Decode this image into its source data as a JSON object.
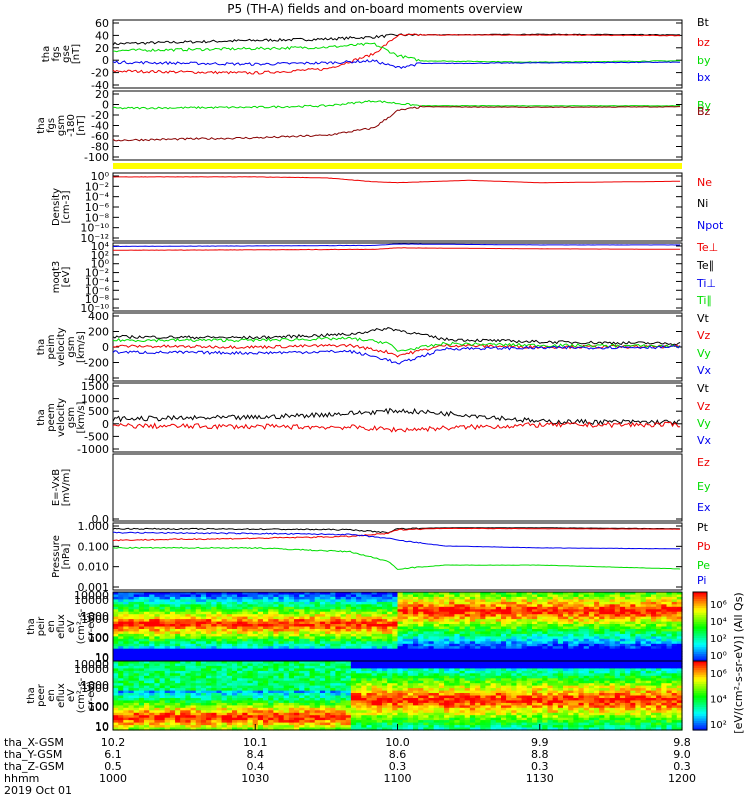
{
  "title": "P5 (TH-A) fields and on-board moments overview",
  "colors": {
    "black": "#000000",
    "red": "#ee0000",
    "green": "#00dd00",
    "blue": "#0000ee",
    "darkred": "#880000",
    "yellow": "#ffff00"
  },
  "chart_data": [
    {
      "type": "line",
      "panel": "fgs",
      "ylabel": [
        "tha",
        "fgs",
        "gse",
        "[nT]"
      ],
      "ylim": [
        -40,
        60
      ],
      "ticks": [
        "60",
        "40",
        "20",
        "0",
        "-20",
        "-40"
      ],
      "legend": [
        {
          "name": "Bt",
          "color": "black"
        },
        {
          "name": "bz",
          "color": "red"
        },
        {
          "name": "by",
          "color": "green"
        },
        {
          "name": "bx",
          "color": "blue"
        }
      ],
      "x_hhmm": [
        1000,
        1030,
        1045,
        1055,
        1100,
        1105,
        1130,
        1200
      ],
      "series": [
        {
          "name": "Bt",
          "values": [
            25,
            30,
            32,
            35,
            38,
            38,
            39,
            38
          ]
        },
        {
          "name": "bz",
          "values": [
            -15,
            -18,
            -12,
            10,
            37,
            38,
            38,
            37
          ]
        },
        {
          "name": "by",
          "values": [
            15,
            18,
            20,
            25,
            8,
            0,
            -2,
            0
          ]
        },
        {
          "name": "bx",
          "values": [
            -2,
            -5,
            -3,
            0,
            -10,
            -4,
            -3,
            -2
          ]
        }
      ]
    },
    {
      "type": "line",
      "panel": "fgs_gsm",
      "ylabel": [
        "tha",
        "fgs",
        "gsm",
        "-180",
        "[nT]"
      ],
      "ylim": [
        -110,
        30
      ],
      "ticks": [
        "20",
        "0",
        "-20",
        "-40",
        "-60",
        "-80",
        "-100"
      ],
      "legend": [
        {
          "name": "By",
          "color": "green"
        },
        {
          "name": "Bz",
          "color": "darkred"
        }
      ],
      "x_hhmm": [
        1000,
        1030,
        1045,
        1055,
        1100,
        1105,
        1130,
        1200
      ],
      "series": [
        {
          "name": "By",
          "values": [
            -5,
            -3,
            0,
            10,
            5,
            0,
            0,
            0
          ]
        },
        {
          "name": "Bz",
          "values": [
            -70,
            -65,
            -60,
            -45,
            -10,
            -2,
            -3,
            -2
          ]
        }
      ]
    },
    {
      "type": "line",
      "panel": "density",
      "ylabel": [
        "Density",
        "[cm-3]"
      ],
      "ticks": [
        "10⁰",
        "10⁻²",
        "10⁻⁴",
        "10⁻⁶",
        "10⁻⁸",
        "10⁻¹⁰",
        "10⁻¹²"
      ],
      "legend": [
        {
          "name": "Ne",
          "color": "red"
        },
        {
          "name": "Ni",
          "color": "black"
        },
        {
          "name": "Npot",
          "color": "blue"
        }
      ],
      "scale": "log",
      "ylim_exp": [
        -12,
        2
      ],
      "x_hhmm": [
        1000,
        1030,
        1045,
        1055,
        1100,
        1115,
        1130,
        1200
      ],
      "series": [
        {
          "name": "Ne",
          "log_values": [
            1.2,
            1.2,
            1.0,
            0.2,
            0.0,
            0.5,
            0.0,
            0.3
          ]
        }
      ]
    },
    {
      "type": "line",
      "panel": "moqt3",
      "ylabel": [
        "moqt3",
        "[eV]"
      ],
      "ticks": [
        "10⁴",
        "10²",
        "10⁰",
        "10⁻²",
        "10⁻⁴",
        "10⁻⁶",
        "10⁻⁸",
        "10⁻¹⁰"
      ],
      "legend": [
        {
          "name": "Te⊥",
          "color": "red"
        },
        {
          "name": "Te∥",
          "color": "black"
        },
        {
          "name": "Ti⊥",
          "color": "blue"
        },
        {
          "name": "Ti∥",
          "color": "green"
        }
      ],
      "scale": "log",
      "ylim_exp": [
        -10,
        4
      ],
      "x_hhmm": [
        1000,
        1030,
        1055,
        1100,
        1130,
        1200
      ],
      "series": [
        {
          "name": "Ti",
          "log_values": [
            3.3,
            3.4,
            3.5,
            3.8,
            3.6,
            3.6
          ]
        },
        {
          "name": "Te",
          "log_values": [
            2.5,
            2.6,
            2.7,
            3.0,
            2.8,
            2.7
          ]
        }
      ]
    },
    {
      "type": "line",
      "panel": "peim_velocity",
      "ylabel": [
        "tha",
        "peim",
        "velocity",
        "gsm",
        "[km/s]"
      ],
      "ylim": [
        -400,
        400
      ],
      "ticks": [
        "400",
        "200",
        "0",
        "-200",
        "-400"
      ],
      "legend": [
        {
          "name": "Vt",
          "color": "black"
        },
        {
          "name": "Vz",
          "color": "red"
        },
        {
          "name": "Vy",
          "color": "green"
        },
        {
          "name": "Vx",
          "color": "blue"
        }
      ],
      "x_hhmm": [
        1000,
        1030,
        1050,
        1058,
        1100,
        1110,
        1130,
        1200
      ],
      "series": [
        {
          "name": "Vt",
          "values": [
            120,
            110,
            150,
            220,
            200,
            90,
            60,
            40
          ]
        },
        {
          "name": "Vz",
          "values": [
            10,
            0,
            20,
            -60,
            -100,
            20,
            0,
            5
          ]
        },
        {
          "name": "Vy",
          "values": [
            80,
            80,
            100,
            50,
            -50,
            40,
            20,
            10
          ]
        },
        {
          "name": "Vx",
          "values": [
            -60,
            -70,
            -50,
            -150,
            -200,
            -20,
            -10,
            0
          ]
        }
      ]
    },
    {
      "type": "line",
      "panel": "peem_velocity",
      "ylabel": [
        "tha",
        "peem",
        "velocity",
        "gsm",
        "[km/s]"
      ],
      "ylim": [
        -1000,
        1500
      ],
      "ticks": [
        "1500",
        "1000",
        "500",
        "0",
        "-500",
        "-1000"
      ],
      "legend": [
        {
          "name": "Vt",
          "color": "black"
        },
        {
          "name": "Vz",
          "color": "red"
        },
        {
          "name": "Vy",
          "color": "green"
        },
        {
          "name": "Vx",
          "color": "blue"
        }
      ],
      "x_hhmm": [
        1000,
        1030,
        1050,
        1100,
        1115,
        1130,
        1200
      ],
      "series": [
        {
          "name": "Vt",
          "values": [
            200,
            250,
            400,
            500,
            350,
            100,
            80
          ]
        },
        {
          "name": "Vz",
          "values": [
            -50,
            -80,
            -100,
            -200,
            -100,
            -20,
            -10
          ]
        }
      ]
    },
    {
      "type": "line",
      "panel": "efield",
      "ylabel": [
        "E=-VxB",
        "[mV/m]"
      ],
      "ticks": [
        "0.0"
      ],
      "legend": [
        {
          "name": "Ez",
          "color": "red"
        },
        {
          "name": "Ey",
          "color": "green"
        },
        {
          "name": "Ex",
          "color": "blue"
        }
      ],
      "series": []
    },
    {
      "type": "line",
      "panel": "pressure",
      "ylabel": [
        "Pressure",
        "[nPa]"
      ],
      "ticks": [
        "1.000",
        "0.100",
        "0.010",
        "0.001"
      ],
      "legend": [
        {
          "name": "Pt",
          "color": "black"
        },
        {
          "name": "Pb",
          "color": "red"
        },
        {
          "name": "Pe",
          "color": "green"
        },
        {
          "name": "Pi",
          "color": "blue"
        }
      ],
      "scale": "log",
      "ylim_exp": [
        -3.3,
        0.2
      ],
      "x_hhmm": [
        1000,
        1030,
        1050,
        1058,
        1100,
        1110,
        1130,
        1200
      ],
      "series": [
        {
          "name": "Pt",
          "log_values": [
            -0.1,
            -0.12,
            -0.15,
            -0.3,
            -0.1,
            -0.05,
            -0.05,
            -0.1
          ]
        },
        {
          "name": "Pb",
          "log_values": [
            -0.7,
            -0.6,
            -0.5,
            -0.35,
            -0.15,
            -0.08,
            -0.1,
            -0.12
          ]
        },
        {
          "name": "Pi",
          "log_values": [
            -0.3,
            -0.35,
            -0.4,
            -0.6,
            -0.7,
            -1.0,
            -1.1,
            -1.15
          ]
        },
        {
          "name": "Pe",
          "log_values": [
            -1.1,
            -1.1,
            -1.3,
            -1.8,
            -2.2,
            -2.0,
            -2.0,
            -2.2
          ]
        }
      ]
    },
    {
      "type": "heatmap",
      "panel": "peir_eflux",
      "ylabel": [
        "tha",
        "peir",
        "en",
        "eflux",
        "eV",
        "(cm²-s-",
        "sr-eV)"
      ],
      "ticks": [
        "10000",
        "1000",
        "100",
        "10"
      ]
    },
    {
      "type": "heatmap",
      "panel": "peer_eflux",
      "ylabel": [
        "tha",
        "peer",
        "en",
        "eflux",
        "eV",
        "(cm²-s-",
        "sr-eV)"
      ],
      "ticks": [
        "10000",
        "1000",
        "100",
        "10"
      ]
    }
  ],
  "colorbar": {
    "label": "[eV/(cm²-s-sr-eV)] (All Qs)",
    "ticks_top": [
      "10⁶",
      "10⁴",
      "10²",
      "10⁰"
    ],
    "ticks_bottom": [
      "10⁶",
      "10⁴",
      "10²"
    ]
  },
  "x_axis": {
    "columns": [
      {
        "x": "10.2",
        "y": "6.1",
        "z": "0.5",
        "hhmm": "1000"
      },
      {
        "x": "10.1",
        "y": "8.4",
        "z": "0.4",
        "hhmm": "1030"
      },
      {
        "x": "10.0",
        "y": "8.6",
        "z": "0.3",
        "hhmm": "1100"
      },
      {
        "x": "9.9",
        "y": "8.8",
        "z": "0.3",
        "hhmm": "1130"
      },
      {
        "x": "9.8",
        "y": "9.0",
        "z": "0.3",
        "hhmm": "1200"
      }
    ],
    "row_labels": [
      "tha_X-GSM",
      "tha_Y-GSM",
      "tha_Z-GSM",
      "hhmm"
    ],
    "date": "2019 Oct 01"
  }
}
